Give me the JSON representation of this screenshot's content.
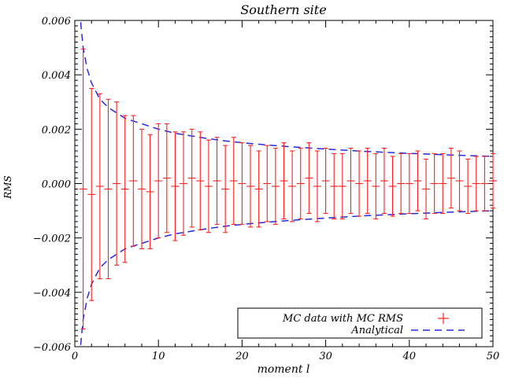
{
  "chart_data": {
    "type": "scatter",
    "title": "Southern site",
    "xlabel": "moment l",
    "ylabel": "RMS",
    "xlim": [
      0,
      50
    ],
    "ylim": [
      -0.006,
      0.006
    ],
    "x_ticks": [
      0,
      10,
      20,
      30,
      40,
      50
    ],
    "x_tick_labels": [
      "0",
      "10",
      "20",
      "30",
      "40",
      "50"
    ],
    "y_ticks": [
      -0.006,
      -0.004,
      -0.002,
      0.0,
      0.002,
      0.004,
      0.006
    ],
    "y_tick_labels": [
      "−0.006",
      "−0.004",
      "−0.002",
      "0.000",
      "0.002",
      "0.004",
      "0.006"
    ],
    "grid": false,
    "legend_position": "bottom-right",
    "series": [
      {
        "name": "MC data with MC RMS",
        "kind": "errorbar",
        "color": "#ff2020",
        "x": [
          1,
          2,
          3,
          4,
          5,
          6,
          7,
          8,
          9,
          10,
          11,
          12,
          13,
          14,
          15,
          16,
          17,
          18,
          19,
          20,
          21,
          22,
          23,
          24,
          25,
          26,
          27,
          28,
          29,
          30,
          31,
          32,
          33,
          34,
          35,
          36,
          37,
          38,
          39,
          40,
          41,
          42,
          43,
          44,
          45,
          46,
          47,
          48,
          49,
          50
        ],
        "y": [
          -0.0002,
          -0.0004,
          -0.0001,
          -0.0002,
          0.0,
          -0.0002,
          0.0001,
          -0.0002,
          -0.0003,
          0.0001,
          0.0002,
          -0.0001,
          0.0,
          0.0002,
          0.0001,
          -0.0001,
          0.0001,
          -0.0002,
          0.0001,
          0.0,
          -0.0001,
          -0.0002,
          0.0,
          -0.0001,
          0.0001,
          -0.0001,
          0.0,
          0.0002,
          -0.0001,
          0.0001,
          -0.0001,
          -0.0001,
          0.0001,
          0.0,
          0.0001,
          -0.0001,
          0.0001,
          -0.0001,
          0.0,
          0.0,
          0.0001,
          -0.0002,
          0.0,
          0.0,
          0.0002,
          0.0001,
          -0.0001,
          0.0,
          0.0,
          0.0001
        ],
        "error": [
          0.00515,
          0.0039,
          0.0034,
          0.0033,
          0.003,
          0.0027,
          0.0024,
          0.0022,
          0.0021,
          0.0021,
          0.002,
          0.002,
          0.0019,
          0.0018,
          0.0018,
          0.0017,
          0.0016,
          0.0016,
          0.0016,
          0.0015,
          0.0015,
          0.0014,
          0.0014,
          0.0014,
          0.0014,
          0.0013,
          0.0013,
          0.0013,
          0.0013,
          0.0012,
          0.0012,
          0.0012,
          0.0012,
          0.0012,
          0.0012,
          0.0012,
          0.0012,
          0.0011,
          0.0011,
          0.0011,
          0.0011,
          0.0011,
          0.0011,
          0.0011,
          0.0011,
          0.0011,
          0.001,
          0.001,
          0.001,
          0.001
        ]
      },
      {
        "name": "Analytical",
        "kind": "dashed-line",
        "color": "#2a2adc",
        "formula_note": "± envelope",
        "x": [
          0.5,
          0.75,
          1,
          1.5,
          2,
          2.5,
          3,
          4,
          5,
          6,
          7,
          8,
          10,
          12,
          14,
          16,
          18,
          20,
          23,
          26,
          30,
          35,
          40,
          45,
          50
        ],
        "y_upper": [
          0.0068,
          0.00575,
          0.005,
          0.0042,
          0.0037,
          0.0034,
          0.0031,
          0.0028,
          0.0026,
          0.0024,
          0.0023,
          0.0022,
          0.002,
          0.00185,
          0.00175,
          0.00165,
          0.00157,
          0.0015,
          0.00142,
          0.00135,
          0.00127,
          0.00118,
          0.00111,
          0.00105,
          0.001
        ]
      }
    ]
  }
}
